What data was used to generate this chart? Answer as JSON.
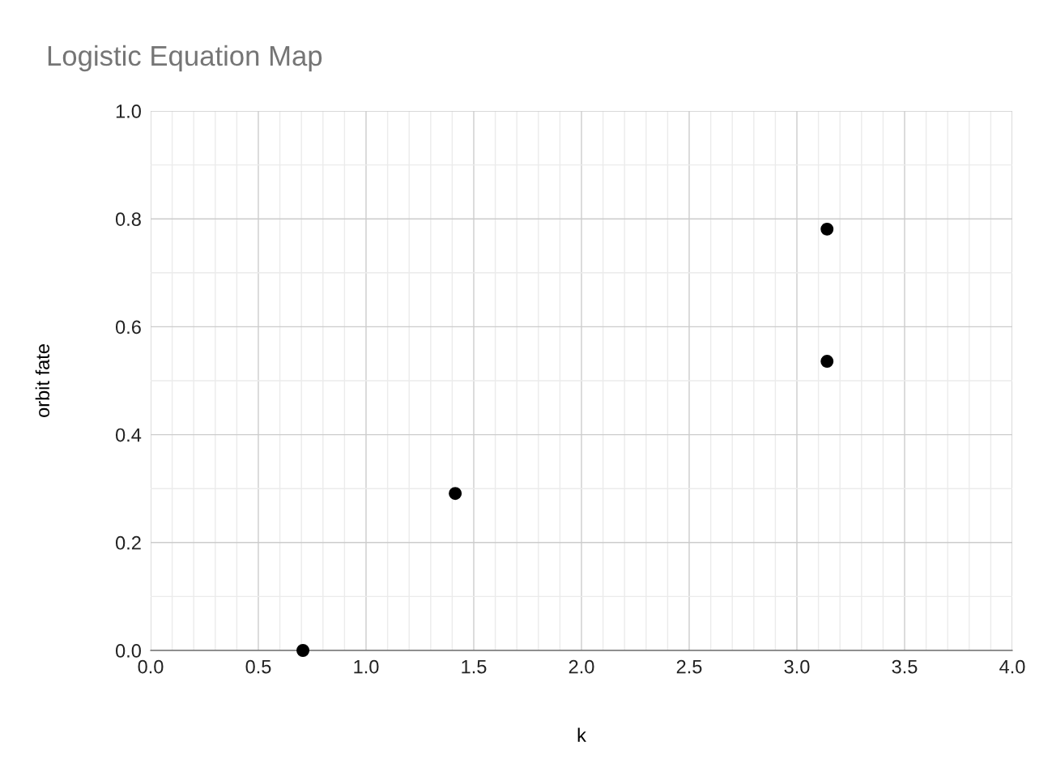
{
  "chart_data": {
    "type": "scatter",
    "title": "Logistic Equation Map",
    "xlabel": "k",
    "ylabel": "orbit fate",
    "x": [
      0.707,
      1.414,
      3.14,
      3.14
    ],
    "series": [
      {
        "color": "#000000",
        "values": [
          0,
          0.291,
          0.781,
          0.536
        ]
      }
    ],
    "xlim": [
      0,
      4
    ],
    "xticks": [
      {
        "value": 0,
        "label": "0.0"
      },
      0.5,
      {
        "value": 1,
        "label": "1.0"
      },
      1.5,
      {
        "value": 2,
        "label": "2.0"
      },
      2.5,
      {
        "value": 3,
        "label": "3.0"
      },
      3.5,
      {
        "value": 4,
        "label": "4.0"
      }
    ],
    "ylim": [
      0,
      1
    ],
    "yticks": [
      {
        "value": 0,
        "label": "0.0"
      },
      0.2,
      0.4,
      0.6,
      0.8,
      {
        "value": 1,
        "label": "1.0"
      }
    ],
    "grid": true,
    "marker": "circle"
  }
}
